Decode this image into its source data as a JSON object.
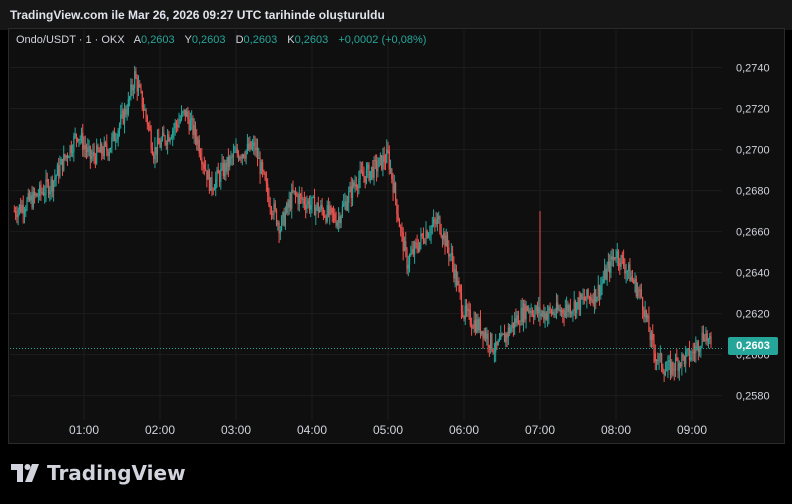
{
  "header": {
    "title": "TradingView.com ile Mar 26, 2026 09:27 UTC tarihinde oluşturuldu"
  },
  "legend": {
    "symbol": "Ondo/USDT · 1 · OKX",
    "open_label": "A",
    "open": "0,2603",
    "high_label": "Y",
    "high": "0,2603",
    "low_label": "D",
    "low": "0,2603",
    "close_label": "K",
    "close": "0,2603",
    "change": "+0,0002 (+0,08%)"
  },
  "last_price_label": "0,2603",
  "brand": "TradingView",
  "colors": {
    "up": "#26a69a",
    "down": "#ef5350",
    "background": "#0f0f0f",
    "grid": "#1c1c1c"
  },
  "chart_data": {
    "type": "candlestick",
    "symbol": "Ondo/USDT",
    "interval": "1",
    "exchange": "OKX",
    "x_ticks": [
      "01:00",
      "02:00",
      "03:00",
      "04:00",
      "05:00",
      "06:00",
      "07:00",
      "08:00",
      "09:00"
    ],
    "y_ticks": [
      "0,2740",
      "0,2720",
      "0,2700",
      "0,2680",
      "0,2660",
      "0,2640",
      "0,2620",
      "0,2600",
      "0,2580"
    ],
    "ylim": [
      0.2572,
      0.2751
    ],
    "last_price": 0.2603,
    "approx_close_path": [
      [
        "00:05",
        0.267
      ],
      [
        "00:20",
        0.2676
      ],
      [
        "00:35",
        0.2684
      ],
      [
        "00:55",
        0.2708
      ],
      [
        "01:05",
        0.2696
      ],
      [
        "01:20",
        0.2701
      ],
      [
        "01:35",
        0.2722
      ],
      [
        "01:40",
        0.2736
      ],
      [
        "01:50",
        0.2714
      ],
      [
        "01:55",
        0.2699
      ],
      [
        "02:10",
        0.271
      ],
      [
        "02:20",
        0.2718
      ],
      [
        "02:30",
        0.2704
      ],
      [
        "02:40",
        0.2682
      ],
      [
        "03:00",
        0.2698
      ],
      [
        "03:15",
        0.2701
      ],
      [
        "03:25",
        0.2678
      ],
      [
        "03:35",
        0.2662
      ],
      [
        "03:45",
        0.2678
      ],
      [
        "04:00",
        0.2673
      ],
      [
        "04:20",
        0.2666
      ],
      [
        "04:35",
        0.2685
      ],
      [
        "04:50",
        0.2691
      ],
      [
        "05:00",
        0.2697
      ],
      [
        "05:05",
        0.268
      ],
      [
        "05:10",
        0.266
      ],
      [
        "05:15",
        0.2645
      ],
      [
        "05:30",
        0.266
      ],
      [
        "05:40",
        0.2665
      ],
      [
        "05:50",
        0.2647
      ],
      [
        "06:00",
        0.262
      ],
      [
        "06:15",
        0.2612
      ],
      [
        "06:25",
        0.2602
      ],
      [
        "06:40",
        0.2616
      ],
      [
        "06:50",
        0.2623
      ],
      [
        "07:00",
        0.262
      ],
      [
        "07:15",
        0.2621
      ],
      [
        "07:30",
        0.2625
      ],
      [
        "07:45",
        0.263
      ],
      [
        "08:00",
        0.265
      ],
      [
        "08:10",
        0.264
      ],
      [
        "08:20",
        0.2628
      ],
      [
        "08:30",
        0.2601
      ],
      [
        "08:40",
        0.2592
      ],
      [
        "08:50",
        0.2597
      ],
      [
        "09:00",
        0.26
      ],
      [
        "09:10",
        0.2611
      ],
      [
        "09:15",
        0.2603
      ]
    ],
    "spike": {
      "time": "07:00",
      "high": 0.267
    }
  }
}
